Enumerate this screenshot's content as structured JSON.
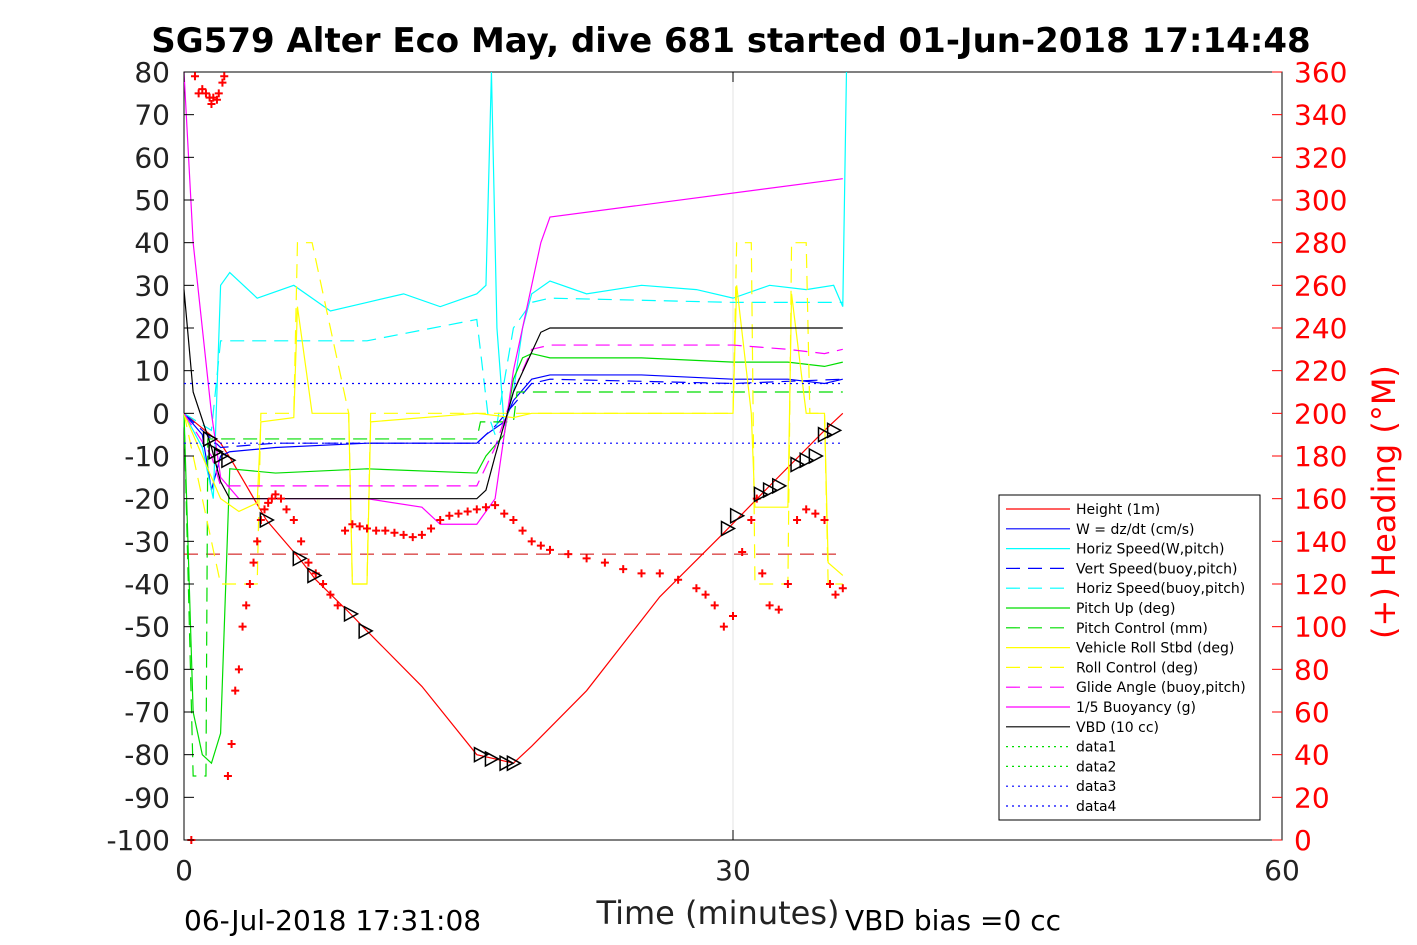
{
  "chart_data": {
    "type": "line",
    "title": "SG579 Alter Eco May, dive 681 started 01-Jun-2018 17:14:48",
    "xlabel": "Time (minutes)",
    "ylabel_right": "(+) Heading (°M)",
    "xlim": [
      0,
      60
    ],
    "ylim": [
      -100,
      80
    ],
    "y2lim": [
      0,
      360
    ],
    "xticks": [
      "0",
      "30",
      "60"
    ],
    "yticks": [
      "80",
      "70",
      "60",
      "50",
      "40",
      "30",
      "20",
      "10",
      "0",
      "-10",
      "-20",
      "-30",
      "-40",
      "-50",
      "-60",
      "-70",
      "-80",
      "-90",
      "-100"
    ],
    "y2ticks": [
      "360",
      "340",
      "320",
      "300",
      "280",
      "260",
      "240",
      "220",
      "200",
      "180",
      "160",
      "140",
      "120",
      "100",
      "80",
      "60",
      "40",
      "20",
      "0"
    ],
    "footer_left": "06-Jul-2018 17:31:08",
    "footer_right": "VBD bias =0 cc",
    "grid": "x only at 30",
    "legend_position": "lower-right",
    "colors": {
      "height": "#ff0000",
      "w": "#0000ff",
      "horiz": "#00ffff",
      "pitch": "#00dd00",
      "roll": "#ffff00",
      "glide": "#ff00ff",
      "vbd": "#000000",
      "heading": "#ff0000"
    },
    "series": [
      {
        "name": "Height (1m)",
        "color": "#ff0000",
        "dash": "solid",
        "x": [
          0,
          2,
          2.6,
          4.5,
          6.3,
          7.2,
          9.1,
          10,
          13,
          16,
          18,
          19,
          22,
          26,
          29.5,
          32,
          35,
          36
        ],
        "y": [
          0,
          -7,
          -11,
          -25,
          -34,
          -39,
          -47,
          -51,
          -64,
          -80,
          -82,
          -78,
          -65,
          -43,
          -28,
          -17,
          -4,
          0
        ]
      },
      {
        "name": "W = dz/dt (cm/s)",
        "color": "#0000ff",
        "dash": "solid",
        "x": [
          0,
          1,
          1.5,
          2,
          2.5,
          5,
          10,
          16,
          16.5,
          17.5,
          18,
          19,
          20,
          25,
          30,
          33,
          35,
          36
        ],
        "y": [
          0,
          -5,
          -18,
          -10,
          -9,
          -8,
          -7,
          -7,
          -5,
          -2,
          3,
          8,
          9,
          9,
          8,
          8,
          7,
          8
        ]
      },
      {
        "name": "Horiz Speed(W,pitch)",
        "color": "#00ffff",
        "dash": "solid",
        "x": [
          0,
          1,
          1.6,
          2,
          2.5,
          4,
          6,
          8,
          10,
          12,
          14,
          16,
          16.5,
          16.8,
          17.1,
          17.5,
          18,
          18.5,
          19,
          20,
          22,
          25,
          28,
          30,
          32,
          34,
          35.5,
          36,
          36.2
        ],
        "y": [
          0,
          -8,
          -20,
          30,
          33,
          27,
          30,
          24,
          26,
          28,
          25,
          28,
          30,
          80,
          20,
          -3,
          5,
          20,
          28,
          31,
          28,
          30,
          29,
          27,
          30,
          29,
          30,
          25,
          80
        ]
      },
      {
        "name": "Vert Speed(buoy,pitch)",
        "color": "#0000ff",
        "dash": "dash",
        "x": [
          0,
          1.5,
          2,
          5,
          10,
          16,
          17,
          18,
          19,
          20,
          30,
          36
        ],
        "y": [
          0,
          -6,
          -8,
          -7,
          -7,
          -7,
          -3,
          2,
          7,
          8,
          7,
          8
        ]
      },
      {
        "name": "Horiz Speed(buoy,pitch)",
        "color": "#00ffff",
        "dash": "dash",
        "x": [
          0,
          1.5,
          2,
          5,
          10,
          16,
          16.6,
          17,
          18,
          19,
          20,
          30,
          36
        ],
        "y": [
          0,
          -4,
          17,
          17,
          17,
          22,
          0,
          -5,
          20,
          26,
          27,
          26,
          26
        ]
      },
      {
        "name": "Pitch Up (deg)",
        "color": "#00dd00",
        "dash": "solid",
        "x": [
          0,
          0.5,
          1,
          1.5,
          2,
          2.5,
          5,
          10,
          16,
          16.5,
          17.5,
          18,
          18.5,
          19,
          20,
          25,
          30,
          33,
          35,
          36
        ],
        "y": [
          0,
          -70,
          -80,
          -82,
          -75,
          -13,
          -14,
          -13,
          -14,
          -10,
          -5,
          8,
          13,
          14,
          13,
          13,
          12,
          12,
          11,
          12
        ]
      },
      {
        "name": "Pitch Control (mm)",
        "color": "#00dd00",
        "dash": "dash",
        "x": [
          0,
          0.5,
          1.2,
          1.3,
          1.8,
          2,
          2.5,
          16,
          16.2,
          18,
          18.2,
          36
        ],
        "y": [
          0,
          -85,
          -85,
          -6,
          -6,
          -6,
          -6,
          -6,
          -2,
          -2,
          5,
          5
        ]
      },
      {
        "name": "Vehicle Roll Stbd (deg)",
        "color": "#ffff00",
        "dash": "solid",
        "x": [
          0,
          1,
          2,
          3,
          4,
          4.2,
          6,
          6.2,
          7,
          9,
          9.2,
          10,
          10.2,
          16,
          18,
          19,
          20,
          30,
          30.2,
          31,
          31.2,
          33,
          33.2,
          34,
          34.2,
          35,
          35.2,
          36
        ],
        "y": [
          0,
          -10,
          -20,
          -23,
          -21,
          -2,
          -1,
          25,
          0,
          0,
          -40,
          -40,
          -2,
          0,
          -1,
          0,
          0,
          0,
          30,
          0,
          -22,
          -22,
          28,
          0,
          0,
          0,
          -35,
          -38
        ]
      },
      {
        "name": "Roll Control (deg)",
        "color": "#ffff00",
        "dash": "dash",
        "x": [
          0,
          1,
          2,
          3,
          4,
          4.2,
          6,
          6.2,
          7,
          9,
          9.2,
          10,
          10.2,
          16,
          20,
          30,
          30.2,
          31,
          31.2,
          33,
          33.2,
          34,
          34.2,
          35,
          35.2,
          36
        ],
        "y": [
          0,
          -20,
          -40,
          -40,
          -40,
          0,
          0,
          40,
          40,
          0,
          -40,
          -40,
          0,
          0,
          0,
          0,
          40,
          40,
          -40,
          -40,
          40,
          40,
          0,
          0,
          -40,
          -40
        ]
      },
      {
        "name": "Glide Angle (buoy,pitch)",
        "color": "#ff00ff",
        "dash": "dash",
        "x": [
          0,
          1.5,
          2,
          5,
          10,
          16,
          17,
          18,
          19,
          20,
          30,
          33,
          35,
          36
        ],
        "y": [
          0,
          -10,
          -17,
          -17,
          -17,
          -17,
          -8,
          5,
          15,
          16,
          16,
          15,
          14,
          15
        ]
      },
      {
        "name": "1/5 Buoyancy (g)",
        "color": "#ff00ff",
        "dash": "solid",
        "x": [
          0,
          0.5,
          1.5,
          2,
          3,
          10,
          13,
          14,
          16,
          17,
          18,
          19.5,
          20,
          36
        ],
        "y": [
          80,
          40,
          0,
          -15,
          -20,
          -20,
          -22,
          -26,
          -26,
          -20,
          10,
          40,
          46,
          55
        ]
      },
      {
        "name": "VBD (10 cc)",
        "color": "#000000",
        "dash": "solid",
        "x": [
          0,
          0.5,
          1.5,
          2,
          2.5,
          16,
          16.5,
          17,
          18,
          19.5,
          20,
          36
        ],
        "y": [
          29,
          5,
          -8,
          -16,
          -20,
          -20,
          -18,
          -10,
          5,
          19,
          20,
          20
        ]
      },
      {
        "name": "data1",
        "color": "#00dd00",
        "dash": "dot",
        "x": [],
        "y": []
      },
      {
        "name": "data2",
        "color": "#00dd00",
        "dash": "dot",
        "x": [],
        "y": []
      },
      {
        "name": "data3",
        "color": "#0000ff",
        "dash": "dot",
        "x": [
          0,
          36
        ],
        "y": [
          7,
          7
        ]
      },
      {
        "name": "data4",
        "color": "#0000ff",
        "dash": "dot",
        "x": [
          0,
          36
        ],
        "y": [
          -7,
          -7
        ]
      }
    ],
    "reference_line": {
      "color": "#cc0000",
      "dash": "dash",
      "x": [
        0,
        36
      ],
      "y": [
        -33,
        -33
      ]
    },
    "heading_points": {
      "axis": "right",
      "color": "#ff0000",
      "x": [
        0.4,
        0.6,
        0.8,
        1.0,
        1.2,
        1.4,
        1.5,
        1.6,
        1.8,
        1.9,
        2.1,
        2.2,
        2.4,
        2.6,
        2.8,
        3.0,
        3.2,
        3.4,
        3.6,
        3.8,
        4.0,
        4.2,
        4.4,
        4.6,
        4.8,
        5.0,
        5.3,
        5.6,
        6.0,
        6.4,
        6.8,
        7.2,
        7.6,
        8.0,
        8.4,
        8.8,
        9.2,
        9.6,
        10.0,
        10.5,
        11,
        11.5,
        12,
        12.5,
        13,
        13.5,
        14,
        14.5,
        15,
        15.5,
        16,
        16.5,
        17,
        17.5,
        18,
        18.5,
        19,
        19.5,
        20,
        21,
        22,
        23,
        24,
        25,
        26,
        27,
        28,
        28.5,
        29,
        29.5,
        30,
        30.5,
        31,
        31.3,
        31.6,
        32,
        32.5,
        33,
        33.5,
        34,
        34.5,
        35,
        35.3,
        35.6,
        36
      ],
      "y": [
        0,
        358,
        350,
        352,
        350,
        348,
        345,
        348,
        347,
        350,
        355,
        358,
        30,
        45,
        70,
        80,
        100,
        110,
        120,
        130,
        140,
        150,
        155,
        158,
        160,
        162,
        160,
        155,
        150,
        140,
        130,
        125,
        120,
        115,
        110,
        145,
        148,
        147,
        146,
        145,
        145,
        144,
        143,
        142,
        143,
        146,
        150,
        152,
        153,
        154,
        155,
        156,
        157,
        153,
        150,
        145,
        140,
        138,
        136,
        134,
        132,
        130,
        127,
        125,
        125,
        122,
        118,
        115,
        110,
        100,
        105,
        135,
        150,
        160,
        125,
        110,
        108,
        120,
        150,
        155,
        153,
        150,
        120,
        115,
        118
      ]
    },
    "triangle_markers": {
      "color": "#000000",
      "x": [
        1.4,
        1.7,
        2.0,
        2.4,
        4.5,
        6.3,
        7.1,
        9.1,
        9.9,
        16.2,
        16.8,
        17.6,
        18.0,
        29.7,
        30.2,
        31.5,
        32.0,
        32.5,
        33.5,
        34.0,
        34.5,
        35.0,
        35.5
      ],
      "y": [
        -6,
        -9,
        -10,
        -11,
        -25,
        -34,
        -38,
        -47,
        -51,
        -80,
        -81,
        -82,
        -82,
        -27,
        -24,
        -19,
        -18,
        -17,
        -12,
        -11,
        -10,
        -5,
        -4
      ]
    }
  }
}
